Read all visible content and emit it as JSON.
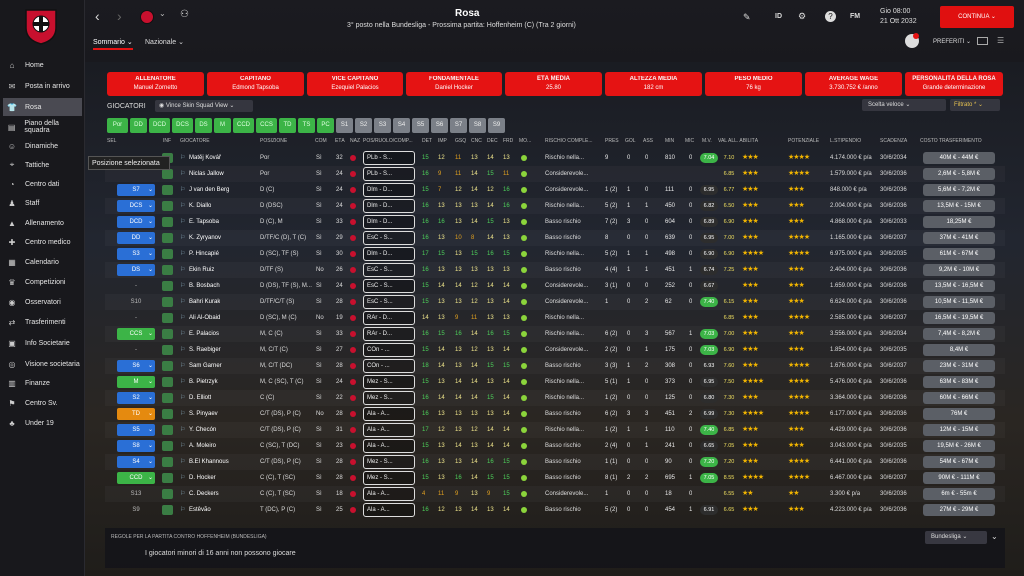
{
  "sidebar": {
    "items": [
      {
        "label": "Home",
        "icon": "home-icon",
        "glyph": "⌂"
      },
      {
        "label": "Posta in arrivo",
        "icon": "inbox-icon",
        "glyph": "✉"
      },
      {
        "label": "Rosa",
        "icon": "squad-icon",
        "glyph": "👕"
      },
      {
        "label": "Piano della squadra",
        "icon": "clipboard-icon",
        "glyph": "▤"
      },
      {
        "label": "Dinamiche",
        "icon": "people-icon",
        "glyph": "☺"
      },
      {
        "label": "Tattiche",
        "icon": "tactics-icon",
        "glyph": "⌖"
      },
      {
        "label": "Centro dati",
        "icon": "data-icon",
        "glyph": "◔"
      },
      {
        "label": "Staff",
        "icon": "staff-icon",
        "glyph": "♟"
      },
      {
        "label": "Allenamento",
        "icon": "training-icon",
        "glyph": "▲"
      },
      {
        "label": "Centro medico",
        "icon": "medical-icon",
        "glyph": "✚"
      },
      {
        "label": "Calendario",
        "icon": "calendar-icon",
        "glyph": "▦"
      },
      {
        "label": "Competizioni",
        "icon": "trophy-icon",
        "glyph": "♛"
      },
      {
        "label": "Osservatori",
        "icon": "scout-icon",
        "glyph": "◉"
      },
      {
        "label": "Trasferimenti",
        "icon": "transfer-icon",
        "glyph": "⇄"
      },
      {
        "label": "Info Societarie",
        "icon": "club-info-icon",
        "glyph": "▣"
      },
      {
        "label": "Visione societaria",
        "icon": "vision-icon",
        "glyph": "◎"
      },
      {
        "label": "Finanze",
        "icon": "finance-icon",
        "glyph": "▥"
      },
      {
        "label": "Centro Sv.",
        "icon": "development-icon",
        "glyph": "⚑"
      },
      {
        "label": "Under 19",
        "icon": "u19-icon",
        "glyph": "♣"
      }
    ]
  },
  "header": {
    "title": "Rosa",
    "subtitle": "3° posto nella Bundesliga - Prossima partita: Hoffenheim (C) (Tra 2 giorni)",
    "tabs": [
      "Sommario",
      "Nazionale"
    ],
    "top_icons": [
      "ID",
      "FM"
    ],
    "time": "Gio 08:00",
    "date": "21 Ott 2032",
    "continue": "CONTINUA",
    "favorites": "PREFERITI"
  },
  "cards": [
    {
      "title": "ALLENATORE",
      "value": "Manuel Zornetto"
    },
    {
      "title": "CAPITANO",
      "value": "Edmond Tapsoba"
    },
    {
      "title": "VICE CAPITANO",
      "value": "Ezequiel Palacios"
    },
    {
      "title": "FONDAMENTALE",
      "value": "Daniel Hocker"
    },
    {
      "title": "ETÀ MEDIA",
      "value": "25.80"
    },
    {
      "title": "ALTEZZA MEDIA",
      "value": "182 cm"
    },
    {
      "title": "PESO MEDIO",
      "value": "76 kg"
    },
    {
      "title": "AVERAGE WAGE",
      "value": "3.730.752 € /anno"
    },
    {
      "title": "PERSONALITÀ DELLA ROSA",
      "value": "Grande determinazione"
    }
  ],
  "toolbar": {
    "section": "GIOCATORI",
    "view": "Vince Skin Squad View",
    "quick_choice": "Scelta veloce",
    "filter": "Filtrato *",
    "tooltip": "Posizione selezionata"
  },
  "position_filters": [
    "Por",
    "DD",
    "DCD",
    "DCS",
    "DS",
    "M",
    "CCD",
    "CCS",
    "TD",
    "TS",
    "PC",
    "S1",
    "S2",
    "S3",
    "S4",
    "S5",
    "S6",
    "S7",
    "S8",
    "S9"
  ],
  "columns": [
    "SEL",
    "INF",
    "GIOCATORE",
    "POSIZIONE",
    "COM",
    "ETÀ",
    "NAZ",
    "POS/RUOLO/COMP...",
    "DET",
    "IMP",
    "GSQ",
    "CNC",
    "DEC",
    "FRD",
    "MO...",
    "RISCHIO COMPLE...",
    "PRES",
    "GOL",
    "ASS",
    "MIN",
    "MIC",
    "M.V.",
    "VAL ALL. ABILITÀ",
    "POTENZIALE",
    "L.STIPENDIO",
    "SCADENZA",
    "COSTO TRASFERIMENTO"
  ],
  "players": [
    {
      "sel": "",
      "badge": "",
      "name": "Matěj Kovář",
      "pos": "Por",
      "com": "Sì",
      "age": "32",
      "role": "PLb - S...",
      "det": "15",
      "imp": "12",
      "gsq": "11",
      "cnc": "13",
      "dec": "14",
      "frd": "13",
      "risk": "Rischio nella...",
      "pres": "9",
      "gol": "0",
      "ass": "0",
      "min": "810",
      "mic": "0",
      "mv": "7.04",
      "vall": "7.10",
      "stars": "★★★",
      "pot": "★★★★",
      "wage": "4.174.000 € p/a",
      "exp": "30/6/2034",
      "cost": "40M € - 44M €",
      "rc": "#4aa84f"
    },
    {
      "sel": "",
      "badge": "",
      "name": "Niclas Jallow",
      "pos": "Por",
      "com": "Sì",
      "age": "24",
      "role": "PLb - S...",
      "det": "16",
      "imp": "9",
      "gsq": "11",
      "cnc": "14",
      "dec": "15",
      "frd": "11",
      "risk": "Considerevole...",
      "pres": "",
      "gol": "",
      "ass": "",
      "min": "",
      "mic": "",
      "mv": "",
      "vall": "6.85",
      "stars": "★★★",
      "pot": "★★★★",
      "wage": "1.579.000 € p/a",
      "exp": "30/6/2036",
      "cost": "2,6M € - 5,8M €",
      "rc": "#e0a020"
    },
    {
      "sel": "S7",
      "badge": "#2a6fd6",
      "name": "J van den Berg",
      "pos": "D (C)",
      "com": "Sì",
      "age": "24",
      "role": "Dlm - D...",
      "det": "15",
      "imp": "7",
      "gsq": "12",
      "cnc": "14",
      "dec": "12",
      "frd": "16",
      "risk": "Considerevole...",
      "pres": "1 (2)",
      "gol": "1",
      "ass": "0",
      "min": "111",
      "mic": "0",
      "mv": "6.95",
      "vall": "6.77",
      "stars": "★★★",
      "pot": "★★★",
      "wage": "848.000 € p/a",
      "exp": "30/6/2036",
      "cost": "5,6M € - 7,2M €",
      "rc": "#e0a020"
    },
    {
      "sel": "DCS",
      "badge": "#2a6fd6",
      "name": "K. Diallo",
      "pos": "D (DSC)",
      "com": "Sì",
      "age": "24",
      "role": "Dlm - D...",
      "det": "16",
      "imp": "13",
      "gsq": "13",
      "cnc": "13",
      "dec": "14",
      "frd": "16",
      "risk": "Rischio nella...",
      "pres": "5 (2)",
      "gol": "1",
      "ass": "1",
      "min": "450",
      "mic": "0",
      "mv": "6.82",
      "vall": "6.50",
      "stars": "★★★",
      "pot": "★★★",
      "wage": "2.004.000 € p/a",
      "exp": "30/6/2036",
      "cost": "13,5M € - 15M €",
      "rc": "#4aa84f"
    },
    {
      "sel": "DCD",
      "badge": "#2a6fd6",
      "name": "E. Tapsoba",
      "pos": "D (C), M",
      "com": "Sì",
      "age": "33",
      "role": "Dlm - D...",
      "det": "16",
      "imp": "16",
      "gsq": "13",
      "cnc": "14",
      "dec": "15",
      "frd": "13",
      "risk": "Basso rischio",
      "pres": "7 (2)",
      "gol": "3",
      "ass": "0",
      "min": "604",
      "mic": "0",
      "mv": "6.89",
      "vall": "6.90",
      "stars": "★★★",
      "pot": "★★★",
      "wage": "4.868.000 € p/a",
      "exp": "30/6/2033",
      "cost": "18,25M €",
      "rc": "#4aa84f"
    },
    {
      "sel": "DD",
      "badge": "#2a6fd6",
      "name": "K. Zyryanov",
      "pos": "D/TF/C (D), T (C)",
      "com": "Sì",
      "age": "29",
      "role": "EsC - S...",
      "det": "16",
      "imp": "13",
      "gsq": "10",
      "cnc": "8",
      "dec": "14",
      "frd": "13",
      "risk": "Basso rischio",
      "pres": "8",
      "gol": "0",
      "ass": "0",
      "min": "639",
      "mic": "0",
      "mv": "6.95",
      "vall": "7.00",
      "stars": "★★★",
      "pot": "★★★★",
      "wage": "1.165.000 € p/a",
      "exp": "30/6/2037",
      "cost": "37M € - 41M €",
      "rc": "#4aa84f"
    },
    {
      "sel": "S3",
      "badge": "#2a6fd6",
      "name": "P. Hincapié",
      "pos": "D (SC), TF (S)",
      "com": "Sì",
      "age": "30",
      "role": "Dlm - D...",
      "det": "17",
      "imp": "15",
      "gsq": "13",
      "cnc": "15",
      "dec": "16",
      "frd": "15",
      "risk": "Rischio nella...",
      "pres": "5 (2)",
      "gol": "1",
      "ass": "1",
      "min": "498",
      "mic": "0",
      "mv": "6.90",
      "vall": "6.90",
      "stars": "★★★★",
      "pot": "★★★★",
      "wage": "6.975.000 € p/a",
      "exp": "30/6/2035",
      "cost": "61M € - 67M €",
      "rc": "#4aa84f"
    },
    {
      "sel": "DS",
      "badge": "#2a6fd6",
      "name": "Ekin Ruiz",
      "pos": "D/TF (S)",
      "com": "No",
      "age": "26",
      "role": "EsC - S...",
      "det": "16",
      "imp": "13",
      "gsq": "13",
      "cnc": "13",
      "dec": "13",
      "frd": "13",
      "risk": "Basso rischio",
      "pres": "4 (4)",
      "gol": "1",
      "ass": "1",
      "min": "451",
      "mic": "1",
      "mv": "6.74",
      "vall": "7.25",
      "stars": "★★★",
      "pot": "★★★",
      "wage": "2.404.000 € p/a",
      "exp": "30/6/2036",
      "cost": "9,2M € - 10M €",
      "rc": "#4aa84f"
    },
    {
      "sel": "-",
      "badge": "",
      "name": "B. Bosbach",
      "pos": "D (DS), TF (S), M...",
      "com": "Sì",
      "age": "24",
      "role": "EsC - S...",
      "det": "15",
      "imp": "14",
      "gsq": "14",
      "cnc": "12",
      "dec": "14",
      "frd": "14",
      "risk": "Considerevole...",
      "pres": "3 (1)",
      "gol": "0",
      "ass": "0",
      "min": "252",
      "mic": "0",
      "mv": "6.67",
      "vall": "",
      "stars": "★★★",
      "pot": "★★★",
      "wage": "1.659.000 € p/a",
      "exp": "30/6/2036",
      "cost": "13,5M € - 16,5M €",
      "rc": "#e0a020"
    },
    {
      "sel": "S10",
      "badge": "",
      "name": "Bahri Kurak",
      "pos": "D/TF/C/T (S)",
      "com": "Sì",
      "age": "28",
      "role": "EsC - S...",
      "det": "15",
      "imp": "13",
      "gsq": "13",
      "cnc": "12",
      "dec": "13",
      "frd": "14",
      "risk": "Considerevole...",
      "pres": "1",
      "gol": "0",
      "ass": "2",
      "min": "62",
      "mic": "0",
      "mv": "7.40",
      "vall": "6.15",
      "stars": "★★★",
      "pot": "★★★",
      "wage": "6.624.000 € p/a",
      "exp": "30/6/2036",
      "cost": "10,5M € - 11,5M €",
      "rc": "#e0a020"
    },
    {
      "sel": "-",
      "badge": "",
      "name": "Ali Al-Obaid",
      "pos": "D (SC), M (C)",
      "com": "No",
      "age": "19",
      "role": "RAr - D...",
      "det": "14",
      "imp": "13",
      "gsq": "9",
      "cnc": "11",
      "dec": "13",
      "frd": "13",
      "risk": "Rischio nella...",
      "pres": "",
      "gol": "",
      "ass": "",
      "min": "",
      "mic": "",
      "mv": "",
      "vall": "6.85",
      "stars": "★★★",
      "pot": "★★★★",
      "wage": "2.585.000 € p/a",
      "exp": "30/6/2037",
      "cost": "16,5M € - 19,5M €",
      "rc": "#4aa84f"
    },
    {
      "sel": "CCS",
      "badge": "#3cb447",
      "name": "E. Palacios",
      "pos": "M, C (C)",
      "com": "Sì",
      "age": "33",
      "role": "RAr - D...",
      "det": "16",
      "imp": "15",
      "gsq": "16",
      "cnc": "14",
      "dec": "16",
      "frd": "15",
      "risk": "Rischio nella...",
      "pres": "6 (2)",
      "gol": "0",
      "ass": "3",
      "min": "567",
      "mic": "1",
      "mv": "7.03",
      "vall": "7.00",
      "stars": "★★★",
      "pot": "★★★",
      "wage": "3.556.000 € p/a",
      "exp": "30/6/2034",
      "cost": "7,4M € - 8,2M €",
      "rc": "#4aa84f"
    },
    {
      "sel": "-",
      "badge": "",
      "name": "S. Raebiger",
      "pos": "M, C/T (C)",
      "com": "Sì",
      "age": "27",
      "role": "COn - ...",
      "det": "15",
      "imp": "14",
      "gsq": "13",
      "cnc": "12",
      "dec": "13",
      "frd": "14",
      "risk": "Considerevole...",
      "pres": "2 (2)",
      "gol": "0",
      "ass": "1",
      "min": "175",
      "mic": "0",
      "mv": "7.03",
      "vall": "6.90",
      "stars": "★★★",
      "pot": "★★★",
      "wage": "1.854.000 € p/a",
      "exp": "30/6/2035",
      "cost": "8,4M €",
      "rc": "#e0a020"
    },
    {
      "sel": "S6",
      "badge": "#2a6fd6",
      "name": "Sam Garner",
      "pos": "M, C/T (DC)",
      "com": "Sì",
      "age": "28",
      "role": "COn - ...",
      "det": "18",
      "imp": "14",
      "gsq": "13",
      "cnc": "14",
      "dec": "15",
      "frd": "15",
      "risk": "Basso rischio",
      "pres": "3 (3)",
      "gol": "1",
      "ass": "2",
      "min": "308",
      "mic": "0",
      "mv": "6.93",
      "vall": "7.60",
      "stars": "★★★",
      "pot": "★★★★",
      "wage": "1.676.000 € p/a",
      "exp": "30/6/2037",
      "cost": "23M € - 31M €",
      "rc": "#4aa84f"
    },
    {
      "sel": "M",
      "badge": "#3cb447",
      "name": "B. Pietrzyk",
      "pos": "M, C (SC), T (C)",
      "com": "Sì",
      "age": "24",
      "role": "Mez - S...",
      "det": "15",
      "imp": "13",
      "gsq": "14",
      "cnc": "14",
      "dec": "13",
      "frd": "14",
      "risk": "Rischio nella...",
      "pres": "5 (1)",
      "gol": "1",
      "ass": "0",
      "min": "373",
      "mic": "0",
      "mv": "6.95",
      "vall": "7.50",
      "stars": "★★★★",
      "pot": "★★★★",
      "wage": "5.476.000 € p/a",
      "exp": "30/6/2036",
      "cost": "63M € - 83M €",
      "rc": "#4aa84f"
    },
    {
      "sel": "S2",
      "badge": "#2a6fd6",
      "name": "D. Elliott",
      "pos": "C (C)",
      "com": "Sì",
      "age": "22",
      "role": "Mez - S...",
      "det": "16",
      "imp": "14",
      "gsq": "14",
      "cnc": "14",
      "dec": "15",
      "frd": "14",
      "risk": "Rischio nella...",
      "pres": "1 (2)",
      "gol": "0",
      "ass": "0",
      "min": "125",
      "mic": "0",
      "mv": "6.80",
      "vall": "7.30",
      "stars": "★★★",
      "pot": "★★★★",
      "wage": "3.364.000 € p/a",
      "exp": "30/6/2036",
      "cost": "60M € - 66M €",
      "rc": "#4aa84f"
    },
    {
      "sel": "TD",
      "badge": "#e58a0f",
      "name": "S. Pinyaev",
      "pos": "C/T (DS), P (C)",
      "com": "No",
      "age": "28",
      "role": "Ala - A...",
      "det": "16",
      "imp": "13",
      "gsq": "13",
      "cnc": "13",
      "dec": "13",
      "frd": "14",
      "risk": "Basso rischio",
      "pres": "6 (2)",
      "gol": "3",
      "ass": "3",
      "min": "451",
      "mic": "2",
      "mv": "6.99",
      "vall": "7.30",
      "stars": "★★★★",
      "pot": "★★★★",
      "wage": "6.177.000 € p/a",
      "exp": "30/6/2036",
      "cost": "76M €",
      "rc": "#4aa84f"
    },
    {
      "sel": "S5",
      "badge": "#2a6fd6",
      "name": "Y. Checón",
      "pos": "C/T (DS), P (C)",
      "com": "Sì",
      "age": "31",
      "role": "Ala - A...",
      "det": "17",
      "imp": "12",
      "gsq": "13",
      "cnc": "12",
      "dec": "14",
      "frd": "14",
      "risk": "Rischio nella...",
      "pres": "1 (2)",
      "gol": "1",
      "ass": "1",
      "min": "110",
      "mic": "0",
      "mv": "7.40",
      "vall": "6.85",
      "stars": "★★★",
      "pot": "★★★",
      "wage": "4.429.000 € p/a",
      "exp": "30/6/2036",
      "cost": "12M € - 15M €",
      "rc": "#4aa84f"
    },
    {
      "sel": "S8",
      "badge": "#2a6fd6",
      "name": "A. Moleiro",
      "pos": "C (SC), T (DC)",
      "com": "Sì",
      "age": "23",
      "role": "Ala - A...",
      "det": "15",
      "imp": "13",
      "gsq": "14",
      "cnc": "13",
      "dec": "14",
      "frd": "14",
      "risk": "Basso rischio",
      "pres": "2 (4)",
      "gol": "0",
      "ass": "1",
      "min": "241",
      "mic": "0",
      "mv": "6.65",
      "vall": "7.05",
      "stars": "★★★",
      "pot": "★★★",
      "wage": "3.043.000 € p/a",
      "exp": "30/6/2035",
      "cost": "19,5M € - 26M €",
      "rc": "#4aa84f"
    },
    {
      "sel": "S4",
      "badge": "#2a6fd6",
      "name": "B.El Khannous",
      "pos": "C/T (DS), P (C)",
      "com": "Sì",
      "age": "28",
      "role": "Mez - S...",
      "det": "16",
      "imp": "13",
      "gsq": "13",
      "cnc": "14",
      "dec": "16",
      "frd": "15",
      "risk": "Basso rischio",
      "pres": "1 (1)",
      "gol": "0",
      "ass": "0",
      "min": "90",
      "mic": "0",
      "mv": "7.20",
      "vall": "7.20",
      "stars": "★★★",
      "pot": "★★★★",
      "wage": "6.441.000 € p/a",
      "exp": "30/6/2036",
      "cost": "54M € - 67M €",
      "rc": "#4aa84f"
    },
    {
      "sel": "CCD",
      "badge": "#3cb447",
      "name": "D. Hocker",
      "pos": "C (C), T (SC)",
      "com": "Sì",
      "age": "28",
      "role": "Mez - S...",
      "det": "15",
      "imp": "13",
      "gsq": "16",
      "cnc": "14",
      "dec": "15",
      "frd": "15",
      "risk": "Basso rischio",
      "pres": "8 (1)",
      "gol": "2",
      "ass": "2",
      "min": "695",
      "mic": "1",
      "mv": "7.05",
      "vall": "8.55",
      "stars": "★★★★",
      "pot": "★★★★",
      "wage": "6.467.000 € p/a",
      "exp": "30/6/2037",
      "cost": "90M € - 111M €",
      "rc": "#4aa84f"
    },
    {
      "sel": "S13",
      "badge": "",
      "name": "C. Deckers",
      "pos": "C (C), T (SC)",
      "com": "Sì",
      "age": "18",
      "role": "Ala - A...",
      "det": "4",
      "imp": "11",
      "gsq": "9",
      "cnc": "13",
      "dec": "9",
      "frd": "15",
      "risk": "Considerevole...",
      "pres": "1",
      "gol": "0",
      "ass": "0",
      "min": "18",
      "mic": "0",
      "mv": "",
      "vall": "6.55",
      "stars": "★★",
      "pot": "★★",
      "wage": "3.300 € p/a",
      "exp": "30/6/2036",
      "cost": "6m € - 55m €",
      "rc": "#e0a020"
    },
    {
      "sel": "S9",
      "badge": "",
      "name": "Estêvão",
      "pos": "T (DC), P (C)",
      "com": "Sì",
      "age": "25",
      "role": "Ala - A...",
      "det": "16",
      "imp": "12",
      "gsq": "13",
      "cnc": "14",
      "dec": "13",
      "frd": "14",
      "risk": "Basso rischio",
      "pres": "5 (2)",
      "gol": "0",
      "ass": "0",
      "min": "454",
      "mic": "1",
      "mv": "6.91",
      "vall": "6.65",
      "stars": "★★★",
      "pot": "★★★",
      "wage": "4.223.000 € p/a",
      "exp": "30/6/2036",
      "cost": "27M € - 29M €",
      "rc": "#4aa84f"
    }
  ],
  "footer": {
    "rules_title": "REGOLE PER LA PARTITA CONTRO HOFFENHEIM (BUNDESLIGA)",
    "rule": "I giocatori minori di 16 anni non possono giocare",
    "competition": "Bundesliga"
  },
  "colors": {
    "accent": "#e51313",
    "position_green": "#3cb447",
    "position_grey": "#7b8088"
  }
}
